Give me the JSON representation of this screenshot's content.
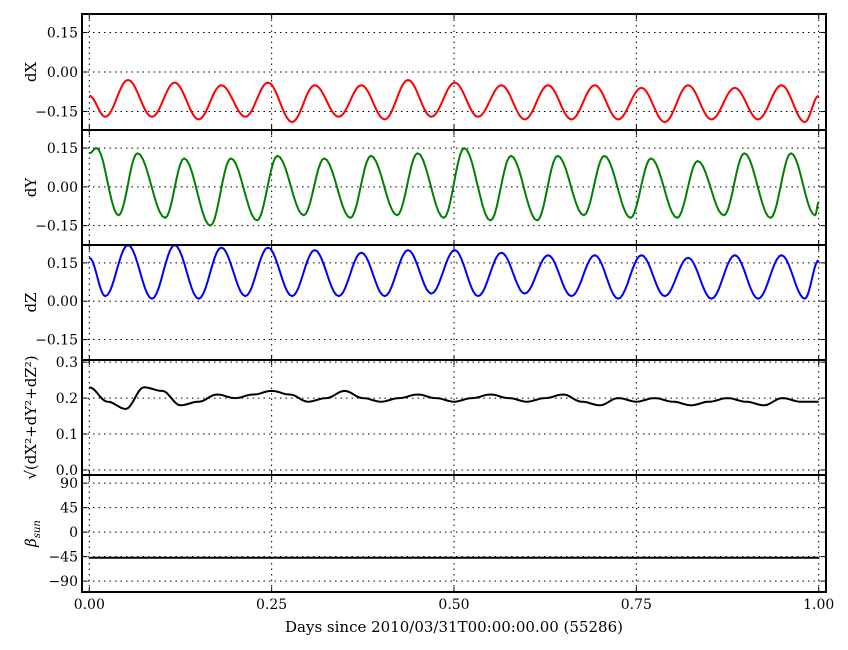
{
  "chart_data": [
    {
      "type": "line",
      "ylabel": "dX",
      "xlim": [
        -0.01,
        1.01
      ],
      "ylim": [
        -0.22,
        0.22
      ],
      "yticks": [
        "0.15",
        "0.00",
        "−0.15"
      ],
      "ytick_values": [
        0.15,
        0,
        -0.15
      ],
      "grid": true,
      "series": [
        {
          "color": "#ff0000",
          "x": [
            0,
            0.022,
            0.053,
            0.086,
            0.117,
            0.15,
            0.181,
            0.214,
            0.245,
            0.278,
            0.309,
            0.342,
            0.373,
            0.405,
            0.437,
            0.469,
            0.501,
            0.533,
            0.565,
            0.597,
            0.629,
            0.661,
            0.693,
            0.725,
            0.757,
            0.789,
            0.821,
            0.853,
            0.885,
            0.917,
            0.949,
            0.981,
            1.0
          ],
          "y": [
            -0.09,
            -0.17,
            -0.03,
            -0.17,
            -0.04,
            -0.18,
            -0.05,
            -0.17,
            -0.04,
            -0.19,
            -0.05,
            -0.17,
            -0.05,
            -0.18,
            -0.03,
            -0.17,
            -0.04,
            -0.17,
            -0.05,
            -0.18,
            -0.05,
            -0.18,
            -0.05,
            -0.18,
            -0.06,
            -0.19,
            -0.05,
            -0.18,
            -0.06,
            -0.18,
            -0.05,
            -0.19,
            -0.09
          ]
        }
      ]
    },
    {
      "type": "line",
      "ylabel": "dY",
      "xlim": [
        -0.01,
        1.01
      ],
      "ylim": [
        -0.225,
        0.22
      ],
      "yticks": [
        "0.15",
        "0.00",
        "−0.15"
      ],
      "ytick_values": [
        0.15,
        0,
        -0.15
      ],
      "grid": true,
      "series": [
        {
          "color": "#008000",
          "x": [
            0,
            0.01,
            0.04,
            0.066,
            0.104,
            0.13,
            0.166,
            0.194,
            0.23,
            0.258,
            0.294,
            0.322,
            0.358,
            0.386,
            0.422,
            0.45,
            0.486,
            0.514,
            0.55,
            0.578,
            0.614,
            0.642,
            0.678,
            0.706,
            0.742,
            0.77,
            0.806,
            0.834,
            0.87,
            0.898,
            0.934,
            0.962,
            0.995,
            1.0
          ],
          "y": [
            0.13,
            0.15,
            -0.11,
            0.13,
            -0.12,
            0.11,
            -0.15,
            0.11,
            -0.13,
            0.12,
            -0.11,
            0.11,
            -0.12,
            0.12,
            -0.11,
            0.13,
            -0.12,
            0.15,
            -0.13,
            0.12,
            -0.13,
            0.12,
            -0.11,
            0.12,
            -0.12,
            0.11,
            -0.12,
            0.1,
            -0.11,
            0.13,
            -0.12,
            0.13,
            -0.11,
            -0.06
          ]
        }
      ]
    },
    {
      "type": "line",
      "ylabel": "dZ",
      "xlim": [
        -0.01,
        1.01
      ],
      "ylim": [
        -0.23,
        0.22
      ],
      "yticks": [
        "0.15",
        "0.00",
        "−0.15"
      ],
      "ytick_values": [
        0.15,
        0,
        -0.15
      ],
      "grid": true,
      "series": [
        {
          "color": "#0000ff",
          "x": [
            0,
            0.022,
            0.053,
            0.086,
            0.117,
            0.15,
            0.181,
            0.214,
            0.245,
            0.278,
            0.309,
            0.342,
            0.373,
            0.405,
            0.437,
            0.469,
            0.501,
            0.533,
            0.565,
            0.597,
            0.629,
            0.661,
            0.693,
            0.725,
            0.757,
            0.789,
            0.821,
            0.853,
            0.885,
            0.917,
            0.949,
            0.981,
            1.0
          ],
          "y": [
            0.17,
            0.02,
            0.22,
            0.01,
            0.22,
            0.01,
            0.21,
            0.02,
            0.21,
            0.02,
            0.2,
            0.02,
            0.19,
            0.02,
            0.2,
            0.03,
            0.2,
            0.02,
            0.19,
            0.03,
            0.18,
            0.02,
            0.18,
            0.01,
            0.18,
            0.02,
            0.17,
            0.01,
            0.18,
            0.01,
            0.18,
            0.01,
            0.16
          ]
        }
      ]
    },
    {
      "type": "line",
      "ylabel": "√(dX²+dY²+dZ²)",
      "xlim": [
        -0.01,
        1.01
      ],
      "ylim": [
        -0.014,
        0.306
      ],
      "yticks": [
        "0.3",
        "0.2",
        "0.1",
        "0.0"
      ],
      "ytick_values": [
        0.3,
        0.2,
        0.1,
        0.0
      ],
      "grid": true,
      "series": [
        {
          "color": "#000000",
          "x": [
            0,
            0.025,
            0.05,
            0.075,
            0.1,
            0.125,
            0.15,
            0.175,
            0.2,
            0.225,
            0.25,
            0.275,
            0.3,
            0.325,
            0.35,
            0.375,
            0.4,
            0.425,
            0.45,
            0.475,
            0.5,
            0.525,
            0.55,
            0.575,
            0.6,
            0.625,
            0.65,
            0.675,
            0.7,
            0.725,
            0.75,
            0.775,
            0.8,
            0.825,
            0.85,
            0.875,
            0.9,
            0.925,
            0.95,
            0.975,
            1.0
          ],
          "y": [
            0.23,
            0.19,
            0.17,
            0.23,
            0.22,
            0.18,
            0.19,
            0.21,
            0.2,
            0.21,
            0.22,
            0.21,
            0.19,
            0.2,
            0.22,
            0.2,
            0.19,
            0.2,
            0.21,
            0.2,
            0.19,
            0.2,
            0.21,
            0.2,
            0.19,
            0.2,
            0.21,
            0.19,
            0.18,
            0.2,
            0.19,
            0.2,
            0.19,
            0.18,
            0.19,
            0.2,
            0.19,
            0.18,
            0.2,
            0.19,
            0.19
          ]
        }
      ]
    },
    {
      "type": "line",
      "ylabel": "β",
      "ylabel_sub": "sun",
      "xlim": [
        -0.01,
        1.01
      ],
      "ylim": [
        -110,
        105
      ],
      "yticks": [
        "90",
        "45",
        "0",
        "−45",
        "−90"
      ],
      "ytick_values": [
        90,
        45,
        0,
        -45,
        -90
      ],
      "grid": true,
      "xticks": [
        "0.00",
        "0.25",
        "0.50",
        "0.75",
        "1.00"
      ],
      "xtick_values": [
        0,
        0.25,
        0.5,
        0.75,
        1.0
      ],
      "xlabel": "Days since 2010/03/31T00:00:00.00 (55286)",
      "series": [
        {
          "color": "#000000",
          "x": [
            0,
            0.25,
            0.5,
            0.75,
            1.0
          ],
          "y": [
            -47,
            -47,
            -47,
            -47,
            -47
          ]
        }
      ]
    }
  ]
}
